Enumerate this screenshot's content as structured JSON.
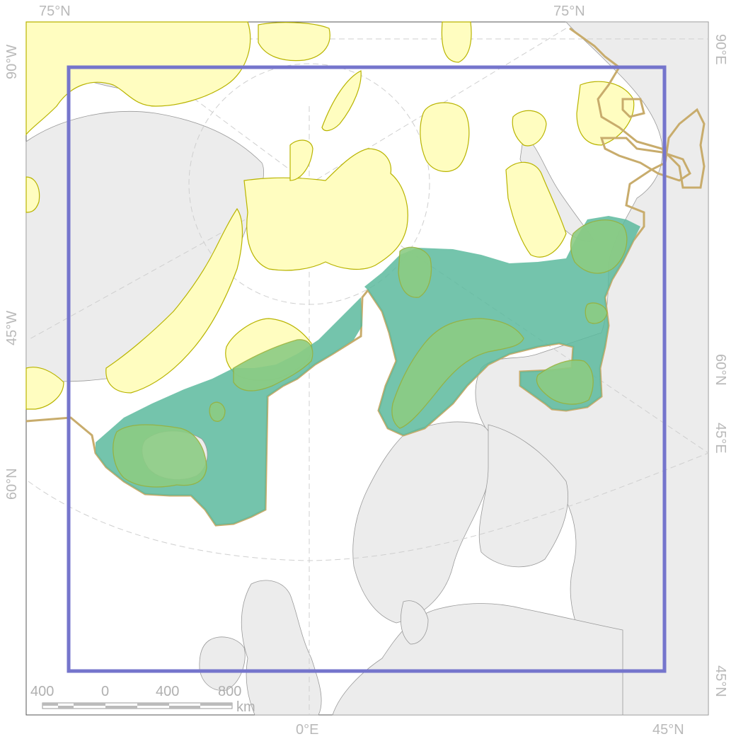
{
  "map": {
    "graticule_labels": {
      "top_left": "75°N",
      "top_right": "75°N",
      "left_90w": "90°W",
      "left_45w": "45°W",
      "left_60n": "60°N",
      "right_90e": "90°E",
      "right_60n": "60°N",
      "right_45e": "45°E",
      "right_45n": "45°N",
      "bottom_0e": "0°E",
      "bottom_45n": "45°N"
    },
    "scale_bar": {
      "tick_labels": [
        "400",
        "0",
        "400",
        "800"
      ],
      "unit": "km"
    },
    "colors": {
      "land": "#ececec",
      "yellow_region": "#fffdc0",
      "yellow_outline": "#b9b400",
      "green_area": "#5cba9e",
      "light_green_area": "#8ccc84",
      "eez_outline": "#c8ac6c",
      "study_frame": "#7575cc"
    }
  }
}
